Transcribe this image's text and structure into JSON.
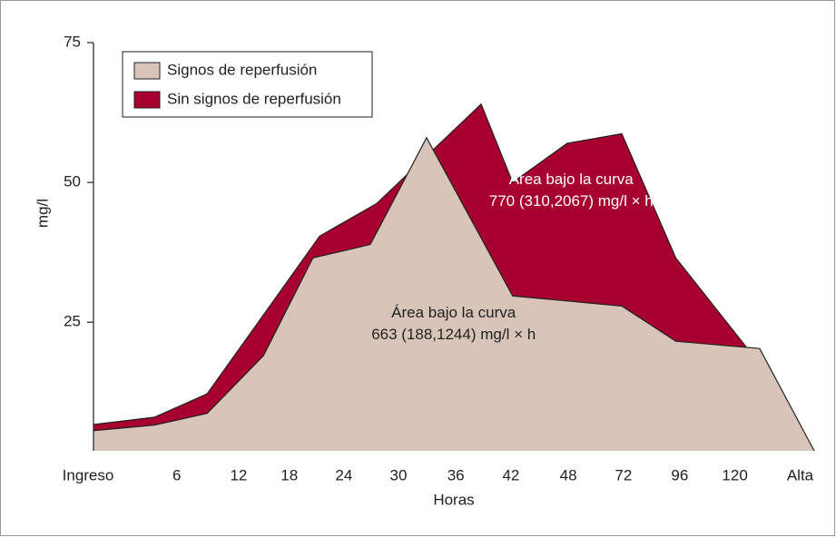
{
  "chart_data": {
    "type": "area",
    "xlabel": "Horas",
    "ylabel": "mg/l",
    "xlim": [
      0,
      12.81
    ],
    "xticks": [
      {
        "value": 0,
        "label": "Ingreso"
      },
      {
        "value": 1.48,
        "label": "6"
      },
      {
        "value": 2.58,
        "label": "12"
      },
      {
        "value": 3.48,
        "label": "18"
      },
      {
        "value": 4.45,
        "label": "24"
      },
      {
        "value": 5.42,
        "label": "30"
      },
      {
        "value": 6.44,
        "label": "36"
      },
      {
        "value": 7.42,
        "label": "42"
      },
      {
        "value": 8.44,
        "label": "48"
      },
      {
        "value": 9.42,
        "label": "72"
      },
      {
        "value": 10.42,
        "label": "96"
      },
      {
        "value": 11.4,
        "label": "120"
      },
      {
        "value": 12.56,
        "label": "Alta"
      }
    ],
    "ylim": [
      2,
      75
    ],
    "yticks": [
      25,
      50,
      75
    ],
    "series": [
      {
        "name": "Sin signos de reperfusión",
        "color": "#a8002e",
        "x": [
          0,
          1.08,
          2.02,
          4.02,
          5.03,
          6.89,
          7.45,
          8.42,
          9.39,
          10.35,
          11.6
        ],
        "values": [
          6.7,
          8.0,
          12.2,
          40.4,
          46.2,
          64.0,
          50.0,
          57.0,
          58.7,
          36.5,
          20.6
        ]
      },
      {
        "name": "Signos de reperfusión",
        "color": "#d9c4b9",
        "x": [
          0,
          1.08,
          2.02,
          3.02,
          3.9,
          4.92,
          5.92,
          7.45,
          9.39,
          10.35,
          11.84,
          12.81
        ],
        "values": [
          5.6,
          6.6,
          8.7,
          19.0,
          36.5,
          38.9,
          58.0,
          29.7,
          27.9,
          21.6,
          20.3,
          2
        ]
      }
    ],
    "legend_order": [
      1,
      0
    ],
    "annotations": [
      {
        "lines": [
          "Área bajo la curva",
          "770 (310,2067) mg/l × h"
        ],
        "x": 8.49,
        "y": 48.5,
        "color": "#ffffff"
      },
      {
        "lines": [
          "Área bajo la curva",
          "663 (188,1244) mg/l × h"
        ],
        "x": 6.4,
        "y": 24.6,
        "color": "#222222"
      }
    ]
  }
}
